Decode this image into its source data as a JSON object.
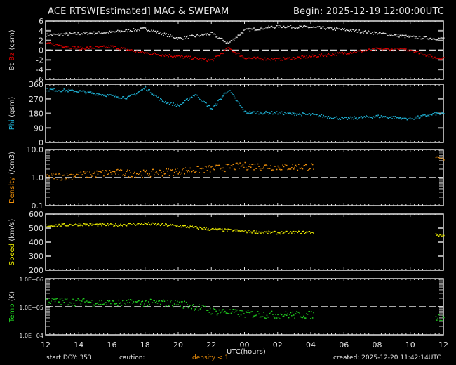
{
  "header": {
    "title": "ACE RTSW[Estimated] MAG & SWEPAM",
    "begin": "Begin: 2025-12-19 12:00:00UTC"
  },
  "footer": {
    "start_doy": "start DOY: 353",
    "caution": "caution:",
    "density_note": "density < 1",
    "created": "created: 2025-12-20 11:42:14UTC",
    "xlabel": "UTC(hours)"
  },
  "colors": {
    "background": "#000000",
    "axis": "#e0e0e0",
    "bt": "#e0e0e0",
    "bz": "#e00000",
    "phi": "#1fb4d8",
    "density": "#f0900a",
    "speed": "#f0f000",
    "temp": "#20d020",
    "caution": "#f0900a"
  },
  "chart_data": [
    {
      "type": "scatter",
      "title": "Bt / Bz",
      "ylabel": "Bt Bz (gsm)",
      "ylabel_parts": [
        "Bt",
        "Bz",
        "(gsm)"
      ],
      "ylim": [
        -6,
        6
      ],
      "yticks": [
        6,
        4,
        2,
        0,
        -2,
        -4,
        -6
      ],
      "reference_line": 0,
      "x_hours": [
        0,
        2,
        4,
        6,
        8,
        10,
        11,
        12,
        14,
        16,
        18,
        20,
        22,
        23.5
      ],
      "series": [
        {
          "name": "Bt",
          "values": [
            3.2,
            3.5,
            3.8,
            4.5,
            2.5,
            3.5,
            1.5,
            4.2,
            5.0,
            4.8,
            4.3,
            3.6,
            2.8,
            2.5
          ]
        },
        {
          "name": "Bz",
          "values": [
            1.5,
            0.5,
            0.8,
            -0.5,
            -1.2,
            -2.0,
            0.5,
            -1.5,
            -1.8,
            -1.2,
            -0.5,
            0.3,
            0.2,
            -1.5
          ]
        }
      ]
    },
    {
      "type": "scatter",
      "title": "Phi",
      "ylabel": "Phi (gsm)",
      "ylim": [
        0,
        360
      ],
      "yticks": [
        360,
        270,
        180,
        90,
        0
      ],
      "x_hours": [
        0,
        2,
        4,
        5,
        6,
        7,
        8,
        9,
        10,
        11,
        12,
        14,
        16,
        18,
        20,
        22,
        23.5
      ],
      "series": [
        {
          "name": "Phi",
          "values": [
            330,
            320,
            290,
            280,
            340,
            260,
            230,
            300,
            210,
            330,
            190,
            185,
            175,
            150,
            165,
            150,
            180
          ]
        }
      ]
    },
    {
      "type": "scatter",
      "title": "Density",
      "ylabel": "Density (/cm3)",
      "yscale": "log",
      "ylim": [
        0.1,
        10.0
      ],
      "yticks": [
        "10.0",
        "1.0",
        "0.1"
      ],
      "reference_line": 1.0,
      "x_hours": [
        0,
        2,
        4,
        6,
        8,
        10,
        12,
        14,
        16,
        23.8
      ],
      "series": [
        {
          "name": "Density",
          "values": [
            1.1,
            1.3,
            1.6,
            1.5,
            1.8,
            2.2,
            2.8,
            2.5,
            2.6,
            4.5
          ]
        }
      ]
    },
    {
      "type": "scatter",
      "title": "Speed",
      "ylabel": "Speed (km/s)",
      "ylim": [
        200,
        600
      ],
      "yticks": [
        600,
        500,
        400,
        300,
        200
      ],
      "x_hours": [
        0,
        2,
        4,
        6,
        8,
        10,
        12,
        14,
        16,
        23.8
      ],
      "series": [
        {
          "name": "Speed",
          "values": [
            520,
            530,
            525,
            535,
            520,
            495,
            480,
            470,
            475,
            455
          ]
        }
      ]
    },
    {
      "type": "scatter",
      "title": "Temp",
      "ylabel": "Temp (K)",
      "yscale": "log",
      "ylim": [
        10000,
        1000000
      ],
      "yticks": [
        "1.0E+06",
        "1.0E+05",
        "1.0E+04"
      ],
      "reference_line": 100000,
      "x_hours": [
        0,
        2,
        4,
        6,
        8,
        10,
        12,
        14,
        16,
        23.8
      ],
      "series": [
        {
          "name": "Temp",
          "values": [
            170000,
            160000,
            140000,
            150000,
            140000,
            75000,
            60000,
            55000,
            55000,
            45000
          ]
        }
      ]
    }
  ],
  "x_axis": {
    "label": "UTC(hours)",
    "ticks": [
      "12",
      "14",
      "16",
      "18",
      "20",
      "22",
      "00",
      "02",
      "04",
      "06",
      "08",
      "10",
      "12"
    ]
  }
}
